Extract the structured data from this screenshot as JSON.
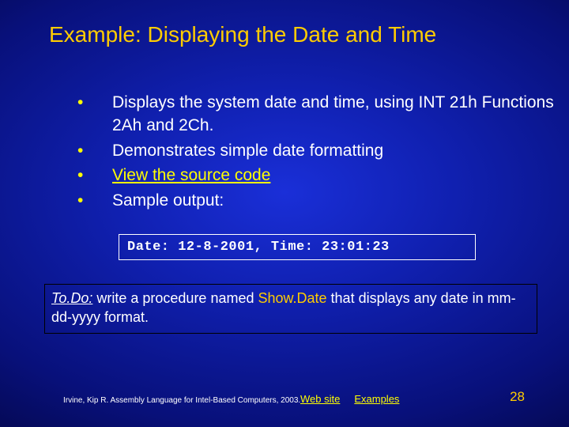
{
  "colors": {
    "title": "#FFCC00",
    "body_text": "#FFFFFF",
    "link": "#FFFF00",
    "highlight": "#FFCC00",
    "page_num": "#FFCC00",
    "bullet": "#FFFF00"
  },
  "title": "Example: Displaying the Date and Time",
  "bullets": [
    {
      "text": "Displays the system date and time, using INT 21h Functions 2Ah and 2Ch.",
      "link": false
    },
    {
      "text": "Demonstrates simple date formatting",
      "link": false
    },
    {
      "text": "View the source code",
      "link": true
    },
    {
      "text": "Sample output:",
      "link": false
    }
  ],
  "code_output": "Date: 12-8-2001,    Time: 23:01:23",
  "todo": {
    "label": "To.Do:",
    "before": " write a procedure named ",
    "highlight": "Show.Date",
    "after": " that displays any date in mm-dd-yyyy format."
  },
  "footer": {
    "citation": "Irvine, Kip R. Assembly Language for Intel-Based Computers, 2003.",
    "links": [
      "Web site",
      "Examples"
    ],
    "page": "28"
  }
}
